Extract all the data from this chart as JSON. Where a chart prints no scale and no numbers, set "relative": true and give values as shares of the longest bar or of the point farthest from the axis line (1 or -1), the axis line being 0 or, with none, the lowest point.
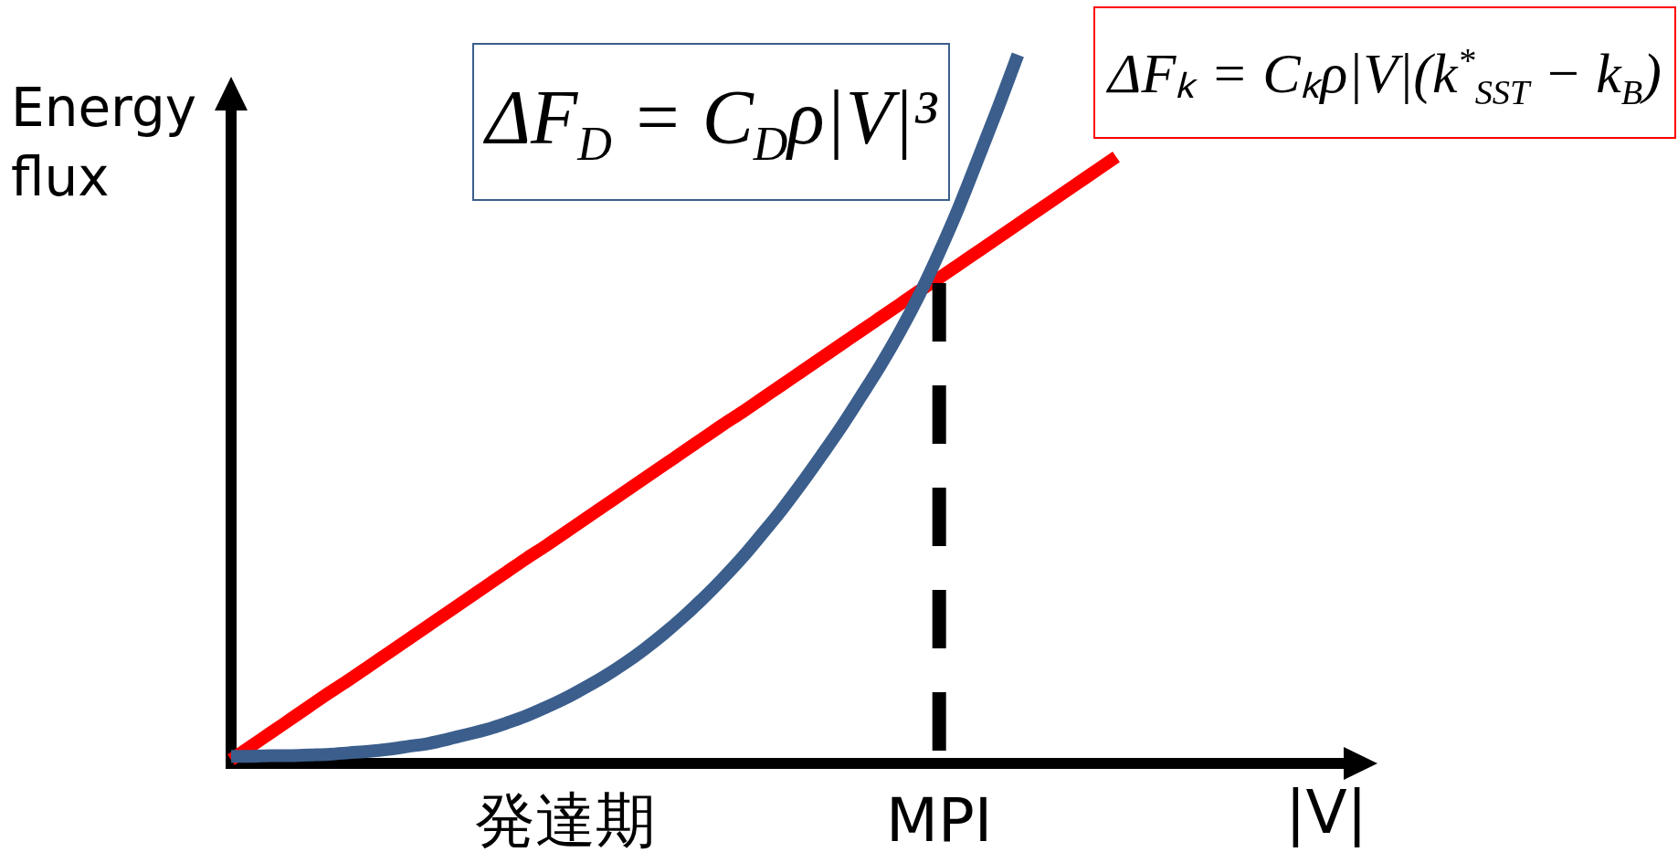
{
  "chart_data": {
    "type": "line",
    "relative": true,
    "ylabel": "Energy flux",
    "xlabel": "|V|",
    "categories": [
      null,
      null,
      null,
      null,
      null,
      null,
      null,
      null,
      null,
      null,
      null,
      null,
      null,
      null,
      null,
      null,
      null,
      "発達期",
      null,
      null,
      null,
      null,
      null,
      null,
      null,
      null,
      null,
      null,
      null,
      null,
      null,
      null,
      null,
      null,
      null,
      null,
      "MPI",
      null,
      null,
      null,
      null,
      null,
      null,
      null,
      null,
      null
    ],
    "series": [
      {
        "name": "ΔFₖ = Cₖρ|V|(k$^{*}$$_{SST}$ − k$_{B}$)",
        "color": "#ff0000",
        "values": [
          0.005,
          0.024,
          0.043,
          0.062,
          0.081,
          0.1,
          0.118,
          0.137,
          0.156,
          0.175,
          0.194,
          0.213,
          0.232,
          0.251,
          0.27,
          0.289,
          0.307,
          0.326,
          0.345,
          0.364,
          0.383,
          0.402,
          0.421,
          0.44,
          0.459,
          0.478,
          0.496,
          0.515,
          0.534,
          0.553,
          0.572,
          0.591,
          0.61,
          0.629,
          0.648,
          0.667,
          0.685,
          0.704,
          0.723,
          0.742,
          0.761,
          0.78,
          0.799,
          0.818,
          0.837,
          0.856
        ]
      },
      {
        "name": "ΔF$_{D}$ = C$_{D}$ρ|V|³",
        "color": "#3b5e8c",
        "values": [
          0.01,
          0.01,
          0.011,
          0.011,
          0.012,
          0.013,
          0.015,
          0.017,
          0.02,
          0.024,
          0.028,
          0.034,
          0.041,
          0.048,
          0.057,
          0.067,
          0.079,
          0.092,
          0.107,
          0.123,
          0.141,
          0.161,
          0.183,
          0.207,
          0.233,
          0.261,
          0.291,
          0.324,
          0.358,
          0.395,
          0.434,
          0.474,
          0.517,
          0.561,
          0.609,
          0.662,
          0.721,
          0.785,
          0.855,
          0.926,
          1.0,
          null,
          null,
          null,
          null,
          null
        ]
      }
    ],
    "ref_lines": [
      {
        "axis": "x",
        "value": "MPI",
        "color": "#000000",
        "line_style": "dashed"
      }
    ]
  }
}
